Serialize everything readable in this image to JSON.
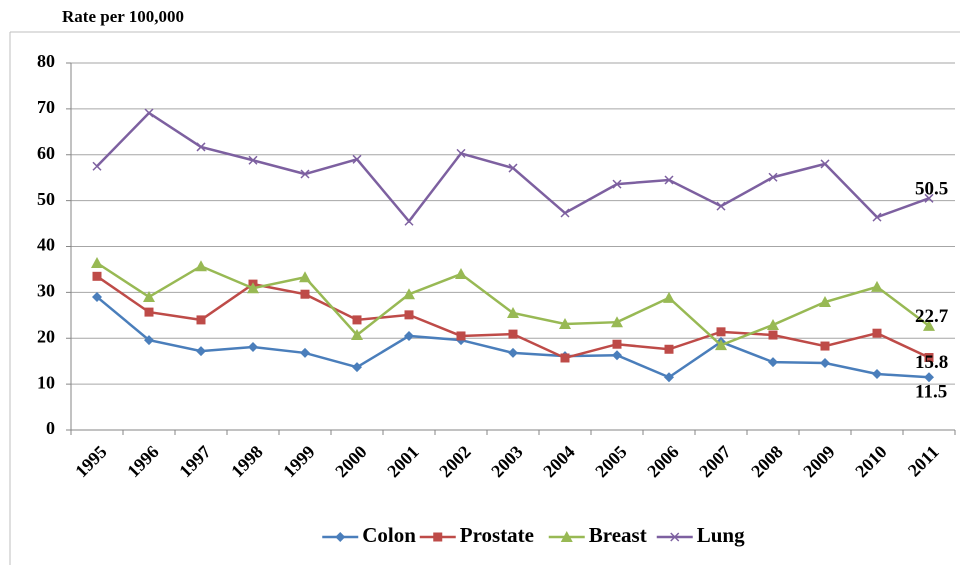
{
  "chart_data": {
    "type": "line",
    "y_axis_label": "Rate per 100,000",
    "categories": [
      "1995",
      "1996",
      "1997",
      "1998",
      "1999",
      "2000",
      "2001",
      "2002",
      "2003",
      "2004",
      "2005",
      "2006",
      "2007",
      "2008",
      "2009",
      "2010",
      "2011"
    ],
    "series": [
      {
        "name": "Colon",
        "color": "#4a7ebb",
        "marker": "diamond",
        "values": [
          29.0,
          19.6,
          17.2,
          18.1,
          16.8,
          13.7,
          20.5,
          19.6,
          16.8,
          16.1,
          16.3,
          11.5,
          19.2,
          14.8,
          14.6,
          12.2,
          11.5
        ]
      },
      {
        "name": "Prostate",
        "color": "#be4b48",
        "marker": "square",
        "values": [
          33.5,
          25.7,
          24.0,
          31.8,
          29.6,
          24.0,
          25.1,
          20.5,
          20.9,
          15.7,
          18.7,
          17.6,
          21.4,
          20.7,
          18.3,
          21.1,
          15.8
        ]
      },
      {
        "name": "Breast",
        "color": "#98b954",
        "marker": "triangle",
        "values": [
          36.4,
          29.0,
          35.7,
          30.9,
          33.3,
          20.7,
          29.6,
          34.0,
          25.5,
          23.1,
          23.5,
          28.8,
          18.5,
          22.9,
          27.9,
          31.2,
          22.7
        ]
      },
      {
        "name": "Lung",
        "color": "#7d60a0",
        "marker": "x",
        "values": [
          57.5,
          69.1,
          61.7,
          58.8,
          55.8,
          59.0,
          45.5,
          60.3,
          57.1,
          47.3,
          53.6,
          54.5,
          48.8,
          55.1,
          58.0,
          46.4,
          50.5
        ]
      }
    ],
    "ylim": [
      0,
      80
    ],
    "yticks": [
      0,
      10,
      20,
      30,
      40,
      50,
      60,
      70,
      80
    ],
    "grid": true,
    "legend": "bottom"
  }
}
